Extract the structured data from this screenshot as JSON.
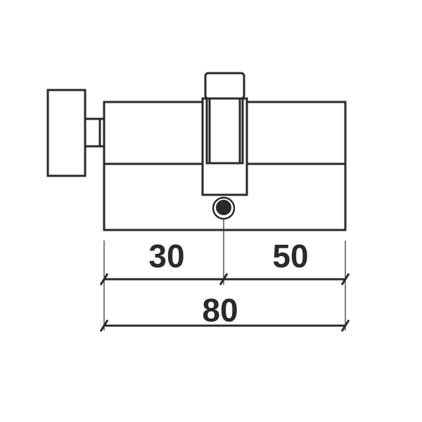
{
  "colors": {
    "stroke": "#2b2a29",
    "background": "#ffffff"
  },
  "dimensions": {
    "left_length": "30",
    "right_length": "50",
    "total_length": "80"
  }
}
